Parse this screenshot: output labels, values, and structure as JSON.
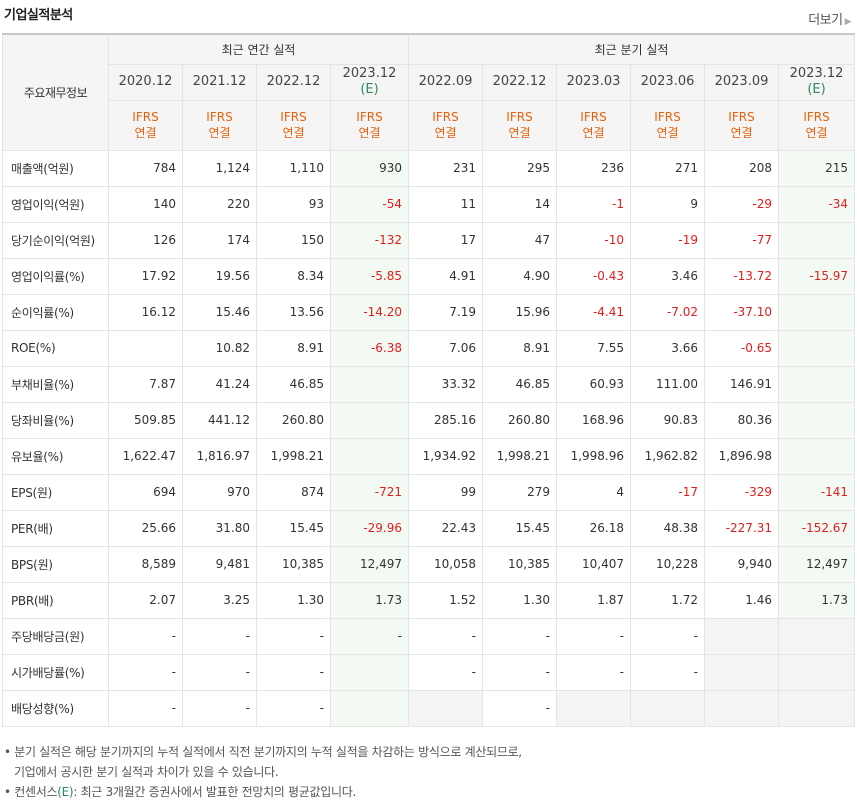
{
  "section_title": "기업실적분석",
  "more_label": "더보기",
  "header": {
    "label": "주요재무정보",
    "group_annual": "최근 연간 실적",
    "group_quarter": "최근 분기 실적",
    "periods": [
      {
        "date": "2020.12",
        "est": ""
      },
      {
        "date": "2021.12",
        "est": ""
      },
      {
        "date": "2022.12",
        "est": ""
      },
      {
        "date": "2023.12",
        "est": "(E)"
      },
      {
        "date": "2022.09",
        "est": ""
      },
      {
        "date": "2022.12",
        "est": ""
      },
      {
        "date": "2023.03",
        "est": ""
      },
      {
        "date": "2023.06",
        "est": ""
      },
      {
        "date": "2023.09",
        "est": ""
      },
      {
        "date": "2023.12",
        "est": "(E)"
      }
    ],
    "acct_line1": "IFRS",
    "acct_line2": "연결"
  },
  "rows": [
    {
      "label": "매출액(억원)",
      "values": [
        "784",
        "1,124",
        "1,110",
        "930",
        "231",
        "295",
        "236",
        "271",
        "208",
        "215"
      ]
    },
    {
      "label": "영업이익(억원)",
      "values": [
        "140",
        "220",
        "93",
        "-54",
        "11",
        "14",
        "-1",
        "9",
        "-29",
        "-34"
      ]
    },
    {
      "label": "당기순이익(억원)",
      "values": [
        "126",
        "174",
        "150",
        "-132",
        "17",
        "47",
        "-10",
        "-19",
        "-77",
        ""
      ]
    },
    {
      "label": "영업이익률(%)",
      "values": [
        "17.92",
        "19.56",
        "8.34",
        "-5.85",
        "4.91",
        "4.90",
        "-0.43",
        "3.46",
        "-13.72",
        "-15.97"
      ]
    },
    {
      "label": "순이익률(%)",
      "values": [
        "16.12",
        "15.46",
        "13.56",
        "-14.20",
        "7.19",
        "15.96",
        "-4.41",
        "-7.02",
        "-37.10",
        ""
      ]
    },
    {
      "label": "ROE(%)",
      "values": [
        "",
        "10.82",
        "8.91",
        "-6.38",
        "7.06",
        "8.91",
        "7.55",
        "3.66",
        "-0.65",
        ""
      ]
    },
    {
      "label": "부채비율(%)",
      "values": [
        "7.87",
        "41.24",
        "46.85",
        "",
        "33.32",
        "46.85",
        "60.93",
        "111.00",
        "146.91",
        ""
      ]
    },
    {
      "label": "당좌비율(%)",
      "values": [
        "509.85",
        "441.12",
        "260.80",
        "",
        "285.16",
        "260.80",
        "168.96",
        "90.83",
        "80.36",
        ""
      ]
    },
    {
      "label": "유보율(%)",
      "values": [
        "1,622.47",
        "1,816.97",
        "1,998.21",
        "",
        "1,934.92",
        "1,998.21",
        "1,998.96",
        "1,962.82",
        "1,896.98",
        ""
      ]
    },
    {
      "label": "EPS(원)",
      "values": [
        "694",
        "970",
        "874",
        "-721",
        "99",
        "279",
        "4",
        "-17",
        "-329",
        "-141"
      ]
    },
    {
      "label": "PER(배)",
      "values": [
        "25.66",
        "31.80",
        "15.45",
        "-29.96",
        "22.43",
        "15.45",
        "26.18",
        "48.38",
        "-227.31",
        "-152.67"
      ]
    },
    {
      "label": "BPS(원)",
      "values": [
        "8,589",
        "9,481",
        "10,385",
        "12,497",
        "10,058",
        "10,385",
        "10,407",
        "10,228",
        "9,940",
        "12,497"
      ]
    },
    {
      "label": "PBR(배)",
      "values": [
        "2.07",
        "3.25",
        "1.30",
        "1.73",
        "1.52",
        "1.30",
        "1.87",
        "1.72",
        "1.46",
        "1.73"
      ]
    },
    {
      "label": "주당배당금(원)",
      "values": [
        "-",
        "-",
        "-",
        "-",
        "-",
        "-",
        "-",
        "-",
        "",
        ""
      ]
    },
    {
      "label": "시가배당률(%)",
      "values": [
        "-",
        "-",
        "-",
        "",
        "-",
        "-",
        "-",
        "-",
        "",
        ""
      ]
    },
    {
      "label": "배당성향(%)",
      "values": [
        "-",
        "-",
        "-",
        "",
        "",
        "-",
        "",
        "",
        "",
        ""
      ]
    }
  ],
  "notes": {
    "line1": "분기 실적은 해당 분기까지의 누적 실적에서 직전 분기까지의 누적 실적을 차감하는 방식으로 계산되므로,",
    "line2": "기업에서 공시한 분기 실적과 차이가 있을 수 있습니다.",
    "line3_prefix": "컨센서스",
    "line3_mark": "(E)",
    "line3_suffix": ": 최근 3개월간 증권사에서 발표한 전망치의 평균값입니다."
  }
}
